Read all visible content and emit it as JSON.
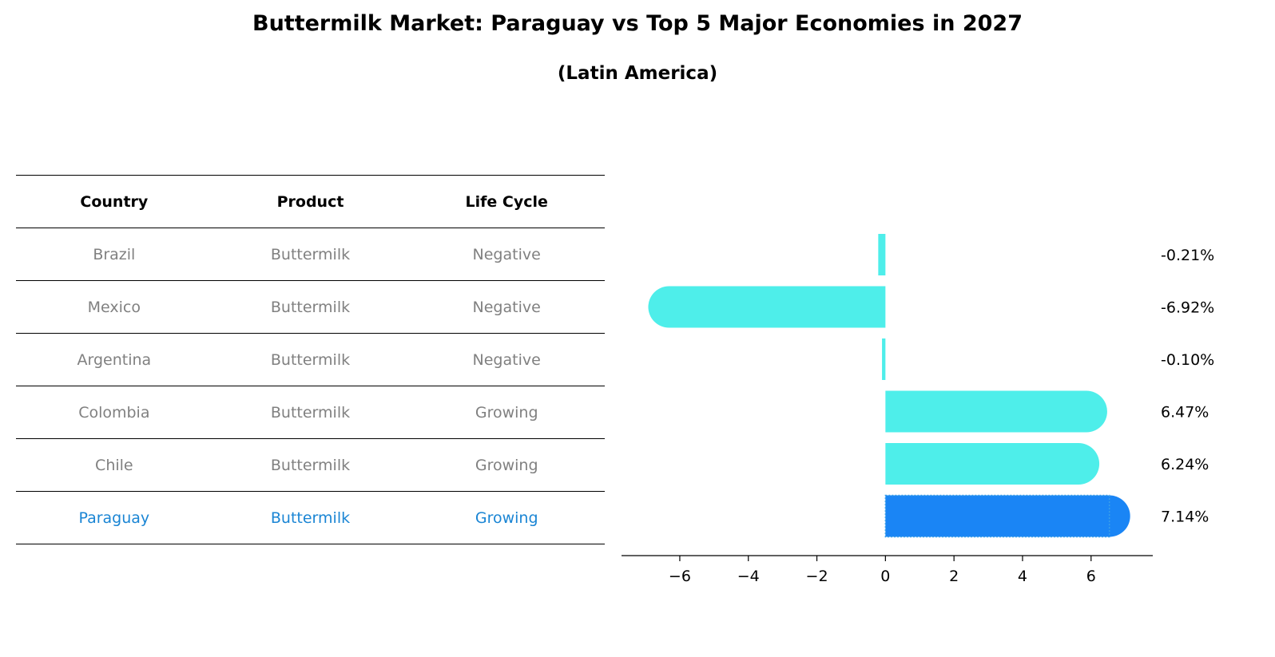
{
  "title": "Buttermilk Market: Paraguay vs Top 5 Major Economies in 2027",
  "subtitle": "(Latin America)",
  "table": {
    "headers": [
      "Country",
      "Product",
      "Life Cycle"
    ],
    "rows": [
      {
        "country": "Brazil",
        "product": "Buttermilk",
        "life_cycle": "Negative"
      },
      {
        "country": "Mexico",
        "product": "Buttermilk",
        "life_cycle": "Negative"
      },
      {
        "country": "Argentina",
        "product": "Buttermilk",
        "life_cycle": "Negative"
      },
      {
        "country": "Colombia",
        "product": "Buttermilk",
        "life_cycle": "Growing"
      },
      {
        "country": "Chile",
        "product": "Buttermilk",
        "life_cycle": "Growing"
      },
      {
        "country": "Paraguay",
        "product": "Buttermilk",
        "life_cycle": "Growing"
      }
    ]
  },
  "colors": {
    "bar": "#4eeeea",
    "highlight_bar": "#1a85f5",
    "highlight_text": "#1a85d4",
    "muted_text": "#808080"
  },
  "chart_data": {
    "type": "bar",
    "orientation": "horizontal",
    "categories": [
      "Brazil",
      "Mexico",
      "Argentina",
      "Colombia",
      "Chile",
      "Paraguay"
    ],
    "values": [
      -0.21,
      -6.92,
      -0.1,
      6.47,
      6.24,
      7.14
    ],
    "value_labels": [
      "-0.21%",
      "-6.92%",
      "-0.10%",
      "6.47%",
      "6.24%",
      "7.14%"
    ],
    "highlight": "Paraguay",
    "xlim": [
      -7.7,
      7.8
    ],
    "xticks": [
      -6,
      -4,
      -2,
      0,
      2,
      4,
      6
    ],
    "xtick_labels": [
      "−6",
      "−4",
      "−2",
      "0",
      "2",
      "4",
      "6"
    ],
    "xlabel": "",
    "ylabel": ""
  }
}
